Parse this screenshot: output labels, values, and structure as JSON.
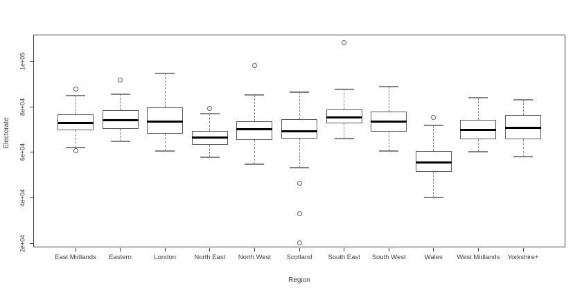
{
  "chart_data": {
    "type": "boxplot",
    "title": "",
    "xlabel": "Region",
    "ylabel": "Electorate",
    "grid": false,
    "legend": "none",
    "ylim": [
      18200,
      111600
    ],
    "y_ticks": {
      "labels": [
        "2e+04",
        "4e+04",
        "6e+04",
        "8e+04",
        "1e+05"
      ],
      "values": [
        20000,
        40000,
        60000,
        80000,
        100000
      ]
    },
    "categories": [
      "East Midlands",
      "Eastern",
      "London",
      "North East",
      "North West",
      "Scotland",
      "South East",
      "South West",
      "Wales",
      "West Midlands",
      "Yorkshire+"
    ],
    "series": [
      {
        "region": "East Midlands",
        "whisker_low": 62200,
        "q1": 69600,
        "median": 73000,
        "q3": 76700,
        "whisker_high": 84800,
        "outliers": [
          87800,
          60800
        ]
      },
      {
        "region": "Eastern",
        "whisker_low": 64900,
        "q1": 70400,
        "median": 74000,
        "q3": 78400,
        "whisker_high": 85600,
        "outliers": [
          91700
        ]
      },
      {
        "region": "London",
        "whisker_low": 60500,
        "q1": 68100,
        "median": 73400,
        "q3": 79700,
        "whisker_high": 94600,
        "outliers": []
      },
      {
        "region": "North East",
        "whisker_low": 57800,
        "q1": 63300,
        "median": 66600,
        "q3": 69300,
        "whisker_high": 77100,
        "outliers": [
          79100
        ]
      },
      {
        "region": "North West",
        "whisker_low": 54900,
        "q1": 65400,
        "median": 70100,
        "q3": 73700,
        "whisker_high": 85300,
        "outliers": [
          98000
        ]
      },
      {
        "region": "Scotland",
        "whisker_low": 53300,
        "q1": 65900,
        "median": 69200,
        "q3": 74500,
        "whisker_high": 86500,
        "outliers": [
          46400,
          33200,
          20200
        ]
      },
      {
        "region": "South East",
        "whisker_low": 66100,
        "q1": 72700,
        "median": 75200,
        "q3": 78900,
        "whisker_high": 87500,
        "outliers": [
          108100
        ]
      },
      {
        "region": "South West",
        "whisker_low": 60500,
        "q1": 69100,
        "median": 73400,
        "q3": 78000,
        "whisker_high": 88900,
        "outliers": []
      },
      {
        "region": "Wales",
        "whisker_low": 40300,
        "q1": 51400,
        "median": 55700,
        "q3": 60500,
        "whisker_high": 71900,
        "outliers": [
          75200
        ]
      },
      {
        "region": "West Midlands",
        "whisker_low": 60300,
        "q1": 65600,
        "median": 69900,
        "q3": 74200,
        "whisker_high": 84000,
        "outliers": []
      },
      {
        "region": "Yorkshire+",
        "whisker_low": 58200,
        "q1": 65800,
        "median": 70800,
        "q3": 76500,
        "whisker_high": 83100,
        "outliers": []
      }
    ],
    "style": {
      "line_color": "#5a5a5a",
      "median_color": "#000000",
      "whisker_color": "#7d7d7d",
      "text_color": "#3d3d3d",
      "background": "#ffffff"
    }
  }
}
